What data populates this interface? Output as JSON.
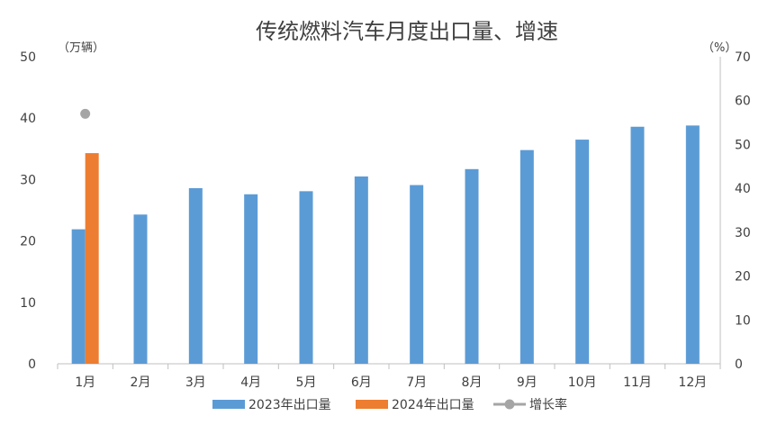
{
  "chart_data": {
    "type": "bar",
    "title": "传统燃料汽车月度出口量、增速",
    "y_unit_left": "（万辆）",
    "y_unit_right": "（%）",
    "categories": [
      "1月",
      "2月",
      "3月",
      "4月",
      "5月",
      "6月",
      "7月",
      "8月",
      "9月",
      "10月",
      "11月",
      "12月"
    ],
    "ylim_left": [
      0,
      50
    ],
    "yticks_left": [
      "0",
      "10",
      "20",
      "30",
      "40",
      "50"
    ],
    "ylim_right": [
      0,
      70
    ],
    "yticks_right": [
      "0",
      "10",
      "20",
      "30",
      "40",
      "50",
      "60",
      "70"
    ],
    "series": [
      {
        "name": "2023年出口量",
        "axis": "left",
        "kind": "bar",
        "color": "#5b9bd5",
        "values": [
          21.9,
          24.3,
          28.6,
          27.6,
          28.1,
          30.5,
          29.1,
          31.7,
          34.8,
          36.5,
          38.6,
          38.8
        ]
      },
      {
        "name": "2024年出口量",
        "axis": "left",
        "kind": "bar",
        "color": "#ed7d31",
        "values": [
          34.3,
          null,
          null,
          null,
          null,
          null,
          null,
          null,
          null,
          null,
          null,
          null
        ]
      },
      {
        "name": "增长率",
        "axis": "right",
        "kind": "scatter",
        "color": "#a5a5a5",
        "values": [
          57,
          null,
          null,
          null,
          null,
          null,
          null,
          null,
          null,
          null,
          null,
          null
        ]
      }
    ],
    "grid": false,
    "legend_position": "bottom"
  }
}
